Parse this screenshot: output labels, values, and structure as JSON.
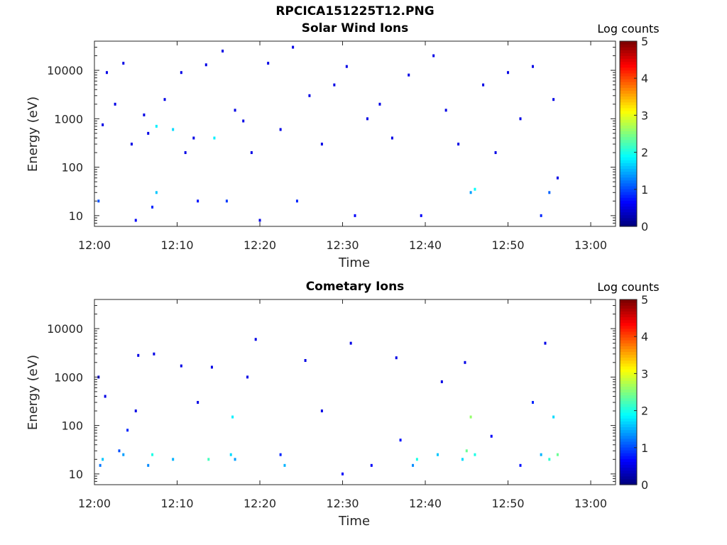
{
  "figure": {
    "title": "RPCICA151225T12.PNG"
  },
  "colorbar": {
    "label": "Log counts",
    "ticks": [
      "0",
      "1",
      "2",
      "3",
      "4",
      "5"
    ],
    "min": 0,
    "max": 5
  },
  "panels": [
    {
      "title": "Solar Wind Ions",
      "xlabel": "Time",
      "ylabel": "Energy (eV)"
    },
    {
      "title": "Cometary Ions",
      "xlabel": "Time",
      "ylabel": "Energy (eV)"
    }
  ],
  "chart_data": [
    {
      "type": "heatmap",
      "title": "Solar Wind Ions",
      "xlabel": "Time",
      "ylabel": "Energy (eV)",
      "xlim": [
        "12:00",
        "13:03"
      ],
      "ylim": [
        6,
        40000
      ],
      "yscale": "log",
      "xticks": [
        "12:00",
        "12:10",
        "12:20",
        "12:30",
        "12:40",
        "12:50",
        "13:00"
      ],
      "yticks": [
        "10",
        "100",
        "1000",
        "10000"
      ],
      "colorbar": {
        "label": "Log counts",
        "range": [
          0,
          5
        ]
      },
      "points": [
        {
          "t": 0.5,
          "e": 20,
          "c": 1.0
        },
        {
          "t": 1.0,
          "e": 750,
          "c": 0.5
        },
        {
          "t": 1.5,
          "e": 9000,
          "c": 0.5
        },
        {
          "t": 2.5,
          "e": 2000,
          "c": 0.5
        },
        {
          "t": 3.5,
          "e": 14000,
          "c": 0.5
        },
        {
          "t": 4.5,
          "e": 300,
          "c": 0.5
        },
        {
          "t": 5.0,
          "e": 8,
          "c": 0.6
        },
        {
          "t": 6.0,
          "e": 1200,
          "c": 0.5
        },
        {
          "t": 6.5,
          "e": 500,
          "c": 0.5
        },
        {
          "t": 7.0,
          "e": 15,
          "c": 0.8
        },
        {
          "t": 7.5,
          "e": 700,
          "c": 1.8
        },
        {
          "t": 7.5,
          "e": 30,
          "c": 1.6
        },
        {
          "t": 8.5,
          "e": 2500,
          "c": 0.5
        },
        {
          "t": 9.5,
          "e": 600,
          "c": 1.7
        },
        {
          "t": 10.5,
          "e": 9000,
          "c": 0.5
        },
        {
          "t": 11.0,
          "e": 200,
          "c": 0.5
        },
        {
          "t": 12.0,
          "e": 400,
          "c": 0.5
        },
        {
          "t": 12.5,
          "e": 20,
          "c": 0.7
        },
        {
          "t": 13.5,
          "e": 13000,
          "c": 0.5
        },
        {
          "t": 14.5,
          "e": 400,
          "c": 1.8
        },
        {
          "t": 15.5,
          "e": 25000,
          "c": 0.5
        },
        {
          "t": 16.0,
          "e": 20,
          "c": 0.9
        },
        {
          "t": 17.0,
          "e": 1500,
          "c": 0.5
        },
        {
          "t": 18.0,
          "e": 900,
          "c": 0.5
        },
        {
          "t": 19.0,
          "e": 200,
          "c": 0.5
        },
        {
          "t": 20.0,
          "e": 8,
          "c": 0.5
        },
        {
          "t": 21.0,
          "e": 14000,
          "c": 0.5
        },
        {
          "t": 22.5,
          "e": 600,
          "c": 0.5
        },
        {
          "t": 24.0,
          "e": 30000,
          "c": 0.5
        },
        {
          "t": 24.5,
          "e": 20,
          "c": 0.8
        },
        {
          "t": 26.0,
          "e": 3000,
          "c": 0.5
        },
        {
          "t": 27.5,
          "e": 300,
          "c": 0.5
        },
        {
          "t": 29.0,
          "e": 5000,
          "c": 0.5
        },
        {
          "t": 30.5,
          "e": 12000,
          "c": 0.5
        },
        {
          "t": 31.5,
          "e": 10,
          "c": 0.6
        },
        {
          "t": 33.0,
          "e": 1000,
          "c": 0.5
        },
        {
          "t": 34.5,
          "e": 2000,
          "c": 0.5
        },
        {
          "t": 36.0,
          "e": 400,
          "c": 0.5
        },
        {
          "t": 38.0,
          "e": 8000,
          "c": 0.5
        },
        {
          "t": 39.5,
          "e": 10,
          "c": 0.6
        },
        {
          "t": 41.0,
          "e": 20000,
          "c": 0.5
        },
        {
          "t": 42.5,
          "e": 1500,
          "c": 0.5
        },
        {
          "t": 44.0,
          "e": 300,
          "c": 0.5
        },
        {
          "t": 45.5,
          "e": 30,
          "c": 1.4
        },
        {
          "t": 46.0,
          "e": 35,
          "c": 1.9
        },
        {
          "t": 47.0,
          "e": 5000,
          "c": 0.5
        },
        {
          "t": 48.5,
          "e": 200,
          "c": 0.5
        },
        {
          "t": 50.0,
          "e": 9000,
          "c": 0.5
        },
        {
          "t": 51.5,
          "e": 1000,
          "c": 0.5
        },
        {
          "t": 53.0,
          "e": 12000,
          "c": 0.5
        },
        {
          "t": 54.0,
          "e": 10,
          "c": 0.8
        },
        {
          "t": 55.0,
          "e": 30,
          "c": 1.1
        },
        {
          "t": 55.5,
          "e": 2500,
          "c": 0.5
        },
        {
          "t": 56.0,
          "e": 60,
          "c": 0.5
        }
      ]
    },
    {
      "type": "heatmap",
      "title": "Cometary Ions",
      "xlabel": "Time",
      "ylabel": "Energy (eV)",
      "xlim": [
        "12:00",
        "13:03"
      ],
      "ylim": [
        6,
        40000
      ],
      "yscale": "log",
      "xticks": [
        "12:00",
        "12:10",
        "12:20",
        "12:30",
        "12:40",
        "12:50",
        "13:00"
      ],
      "yticks": [
        "10",
        "100",
        "1000",
        "10000"
      ],
      "colorbar": {
        "label": "Log counts",
        "range": [
          0,
          5
        ]
      },
      "points": [
        {
          "t": 0.5,
          "e": 1000,
          "c": 0.5
        },
        {
          "t": 0.7,
          "e": 15,
          "c": 1.2
        },
        {
          "t": 1.0,
          "e": 20,
          "c": 1.6
        },
        {
          "t": 1.3,
          "e": 400,
          "c": 0.5
        },
        {
          "t": 3.0,
          "e": 30,
          "c": 1.0
        },
        {
          "t": 3.5,
          "e": 25,
          "c": 1.4
        },
        {
          "t": 4.0,
          "e": 80,
          "c": 0.8
        },
        {
          "t": 5.0,
          "e": 200,
          "c": 0.5
        },
        {
          "t": 5.3,
          "e": 2800,
          "c": 0.5
        },
        {
          "t": 6.5,
          "e": 15,
          "c": 1.3
        },
        {
          "t": 7.0,
          "e": 25,
          "c": 2.0
        },
        {
          "t": 7.2,
          "e": 3000,
          "c": 0.5
        },
        {
          "t": 9.5,
          "e": 20,
          "c": 1.5
        },
        {
          "t": 10.5,
          "e": 1700,
          "c": 0.5
        },
        {
          "t": 12.5,
          "e": 300,
          "c": 0.5
        },
        {
          "t": 13.8,
          "e": 20,
          "c": 2.2
        },
        {
          "t": 14.2,
          "e": 1600,
          "c": 0.5
        },
        {
          "t": 16.5,
          "e": 25,
          "c": 1.7
        },
        {
          "t": 16.7,
          "e": 150,
          "c": 1.8
        },
        {
          "t": 17.0,
          "e": 20,
          "c": 1.4
        },
        {
          "t": 18.5,
          "e": 1000,
          "c": 0.5
        },
        {
          "t": 19.5,
          "e": 6000,
          "c": 0.5
        },
        {
          "t": 22.5,
          "e": 25,
          "c": 0.8
        },
        {
          "t": 23.0,
          "e": 15,
          "c": 1.5
        },
        {
          "t": 25.5,
          "e": 2200,
          "c": 0.5
        },
        {
          "t": 27.5,
          "e": 200,
          "c": 0.5
        },
        {
          "t": 30.0,
          "e": 10,
          "c": 0.6
        },
        {
          "t": 31.0,
          "e": 5000,
          "c": 0.5
        },
        {
          "t": 33.5,
          "e": 15,
          "c": 0.6
        },
        {
          "t": 36.5,
          "e": 2500,
          "c": 0.5
        },
        {
          "t": 37.0,
          "e": 50,
          "c": 0.7
        },
        {
          "t": 38.5,
          "e": 15,
          "c": 1.3
        },
        {
          "t": 39.0,
          "e": 20,
          "c": 2.0
        },
        {
          "t": 41.5,
          "e": 25,
          "c": 1.6
        },
        {
          "t": 42.0,
          "e": 800,
          "c": 0.5
        },
        {
          "t": 44.5,
          "e": 20,
          "c": 1.7
        },
        {
          "t": 44.8,
          "e": 2000,
          "c": 0.5
        },
        {
          "t": 45.0,
          "e": 30,
          "c": 2.4
        },
        {
          "t": 45.5,
          "e": 150,
          "c": 2.6
        },
        {
          "t": 46.0,
          "e": 25,
          "c": 2.0
        },
        {
          "t": 48.0,
          "e": 60,
          "c": 0.6
        },
        {
          "t": 51.5,
          "e": 15,
          "c": 0.7
        },
        {
          "t": 53.0,
          "e": 300,
          "c": 0.8
        },
        {
          "t": 54.0,
          "e": 25,
          "c": 1.5
        },
        {
          "t": 54.5,
          "e": 5000,
          "c": 0.5
        },
        {
          "t": 55.0,
          "e": 20,
          "c": 2.1
        },
        {
          "t": 55.5,
          "e": 150,
          "c": 1.7
        },
        {
          "t": 56.0,
          "e": 25,
          "c": 2.4
        }
      ]
    }
  ]
}
